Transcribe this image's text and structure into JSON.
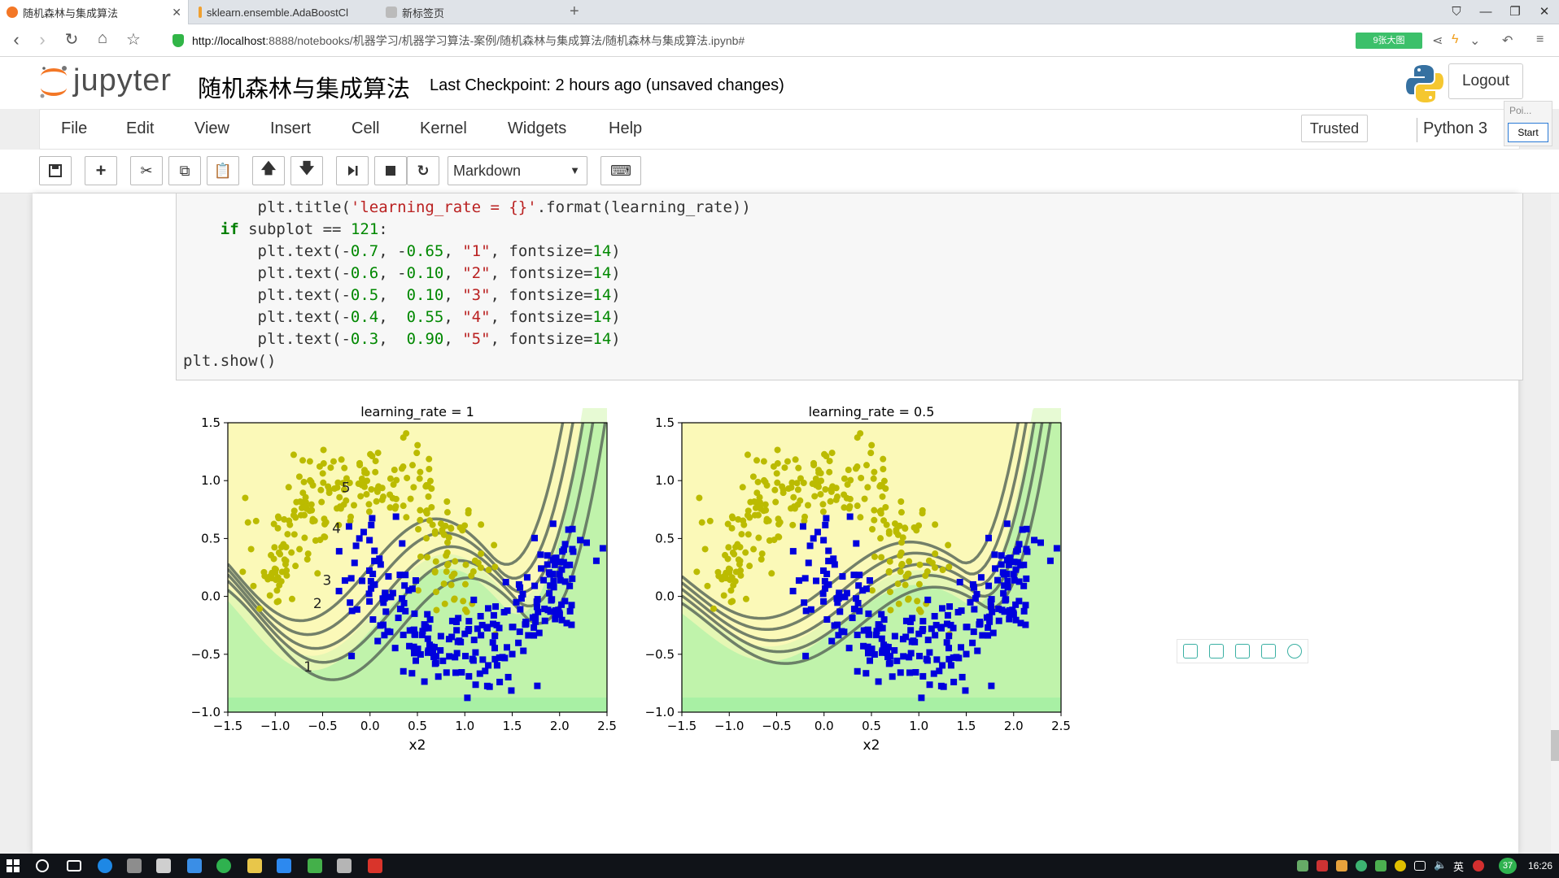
{
  "browser": {
    "tabs": [
      {
        "title": "随机森林与集成算法",
        "active": true
      },
      {
        "title": "sklearn.ensemble.AdaBoostCl",
        "active": false
      },
      {
        "title": "新标签页",
        "active": false
      }
    ],
    "url_host": "http://localhost",
    "url_rest": ":8888/notebooks/机器学习/机器学习算法-案例/随机森林与集成算法/随机森林与集成算法.ipynb#",
    "badge": "9张大图"
  },
  "jupyter": {
    "logo_text": "jupyter",
    "notebook_title": "随机森林与集成算法",
    "checkpoint": "Last Checkpoint: 2 hours ago (unsaved changes)",
    "logout_label": "Logout",
    "menu": [
      "File",
      "Edit",
      "View",
      "Insert",
      "Cell",
      "Kernel",
      "Widgets",
      "Help"
    ],
    "trusted_label": "Trusted",
    "kernel_label": "Python 3",
    "cell_type": "Markdown",
    "popup": {
      "poi": "Poi...",
      "start": "Start"
    }
  },
  "code": {
    "lines": [
      "        plt.title('learning_rate = {}'.format(learning_rate))",
      "    if subplot == 121:",
      "        plt.text(-0.7, -0.65, \"1\", fontsize=14)",
      "        plt.text(-0.6, -0.10, \"2\", fontsize=14)",
      "        plt.text(-0.5,  0.10, \"3\", fontsize=14)",
      "        plt.text(-0.4,  0.55, \"4\", fontsize=14)",
      "        plt.text(-0.3,  0.90, \"5\", fontsize=14)",
      "plt.show()"
    ]
  },
  "chart_data": [
    {
      "type": "scatter",
      "title": "learning_rate = 1",
      "xlabel": "x2",
      "ylabel": "",
      "xlim": [
        -1.5,
        2.5
      ],
      "ylim": [
        -1.0,
        1.5
      ],
      "xticks": [
        "−1.5",
        "−1.0",
        "−0.5",
        "0.0",
        "0.5",
        "1.0",
        "1.5",
        "2.0",
        "2.5"
      ],
      "yticks": [
        "1.5",
        "1.0",
        "0.5",
        "0.0",
        "−0.5",
        "−1.0"
      ],
      "annotations": [
        {
          "text": "1",
          "x": -0.7,
          "y": -0.65
        },
        {
          "text": "2",
          "x": -0.6,
          "y": -0.1
        },
        {
          "text": "3",
          "x": -0.5,
          "y": 0.1
        },
        {
          "text": "4",
          "x": -0.4,
          "y": 0.55
        },
        {
          "text": "5",
          "x": -0.3,
          "y": 0.9
        }
      ],
      "colors": {
        "class0": "#bbbb00",
        "class1": "#0000dd",
        "region0": "#fbf9b8",
        "region1": "#a8f0a4"
      }
    },
    {
      "type": "scatter",
      "title": "learning_rate = 0.5",
      "xlabel": "x2",
      "ylabel": "",
      "xlim": [
        -1.5,
        2.5
      ],
      "ylim": [
        -1.0,
        1.5
      ],
      "xticks": [
        "−1.5",
        "−1.0",
        "−0.5",
        "0.0",
        "0.5",
        "1.0",
        "1.5",
        "2.0",
        "2.5"
      ],
      "yticks": [
        "1.5",
        "1.0",
        "0.5",
        "0.0",
        "−0.5",
        "−1.0"
      ],
      "annotations": [],
      "colors": {
        "class0": "#bbbb00",
        "class1": "#0000dd",
        "region0": "#fbf9b8",
        "region1": "#a8f0a4"
      }
    }
  ],
  "taskbar": {
    "lang": "英",
    "time": "16:26",
    "badge": "37"
  }
}
